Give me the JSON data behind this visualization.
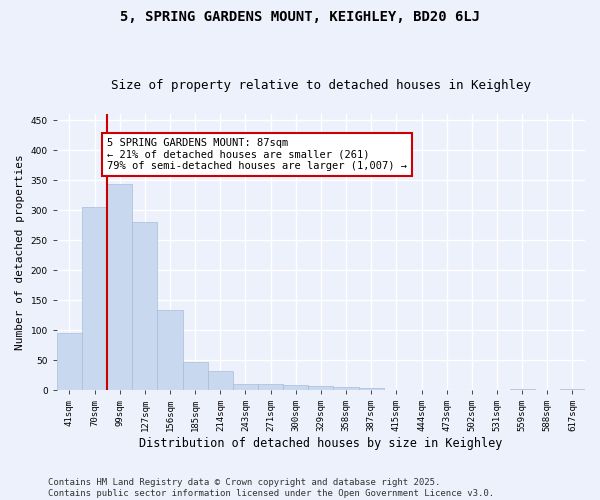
{
  "title1": "5, SPRING GARDENS MOUNT, KEIGHLEY, BD20 6LJ",
  "title2": "Size of property relative to detached houses in Keighley",
  "xlabel": "Distribution of detached houses by size in Keighley",
  "ylabel": "Number of detached properties",
  "categories": [
    "41sqm",
    "70sqm",
    "99sqm",
    "127sqm",
    "156sqm",
    "185sqm",
    "214sqm",
    "243sqm",
    "271sqm",
    "300sqm",
    "329sqm",
    "358sqm",
    "387sqm",
    "415sqm",
    "444sqm",
    "473sqm",
    "502sqm",
    "531sqm",
    "559sqm",
    "588sqm",
    "617sqm"
  ],
  "values": [
    95,
    305,
    343,
    280,
    133,
    47,
    32,
    10,
    11,
    9,
    7,
    5,
    3,
    1,
    1,
    0,
    0,
    0,
    2,
    0,
    2
  ],
  "bar_color": "#c8d8ee",
  "bar_edge_color": "#a8bcd8",
  "vline_x": 1.5,
  "vline_color": "#cc0000",
  "annotation_text": "5 SPRING GARDENS MOUNT: 87sqm\n← 21% of detached houses are smaller (261)\n79% of semi-detached houses are larger (1,007) →",
  "annotation_box_color": "#ffffff",
  "annotation_box_edge_color": "#cc0000",
  "ylim": [
    0,
    460
  ],
  "yticks": [
    0,
    50,
    100,
    150,
    200,
    250,
    300,
    350,
    400,
    450
  ],
  "footer_text": "Contains HM Land Registry data © Crown copyright and database right 2025.\nContains public sector information licensed under the Open Government Licence v3.0.",
  "background_color": "#edf1fb",
  "grid_color": "#ffffff",
  "title1_fontsize": 10,
  "title2_fontsize": 9,
  "xlabel_fontsize": 8.5,
  "ylabel_fontsize": 8,
  "tick_fontsize": 6.5,
  "annotation_fontsize": 7.5,
  "footer_fontsize": 6.5
}
